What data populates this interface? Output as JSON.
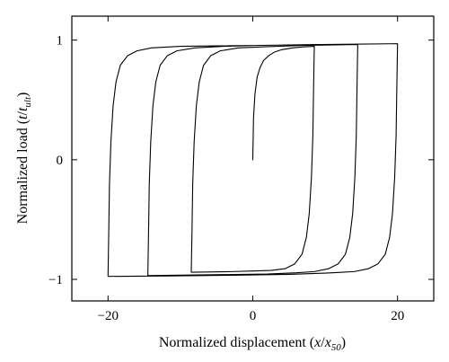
{
  "chart_data": {
    "type": "line",
    "title": "",
    "xlabel": "Normalized displacement (x/x50)",
    "xlabel_parts": {
      "prefix": "Normalized displacement (",
      "var": "x",
      "slash": "/",
      "var2": "x",
      "sub": "50",
      "suffix": ")"
    },
    "ylabel": "Normalized load (t/tult)",
    "ylabel_parts": {
      "prefix": "Normalized load (",
      "var": "t",
      "slash": "/",
      "var2": "t",
      "sub": "ult",
      "suffix": ")"
    },
    "xlim": [
      -25,
      25
    ],
    "ylim": [
      -1.18,
      1.2
    ],
    "xticks": [
      -20,
      0,
      20
    ],
    "xtick_labels": [
      "−20",
      "0",
      "20"
    ],
    "yticks": [
      -1,
      0,
      1
    ],
    "ytick_labels": [
      "−1",
      "0",
      "1"
    ],
    "grid": false,
    "legend": "none",
    "series": [
      {
        "x": [
          0,
          0.1,
          0.3,
          0.6,
          1.0,
          1.5,
          2.2,
          3.0,
          4.0,
          5.5,
          7.0,
          8.5,
          8.5,
          8.4,
          8.3,
          8.1,
          7.8,
          7.4,
          6.8,
          5.8,
          4.5,
          2.5,
          0,
          -3,
          -8.5,
          -8.5,
          -8.4,
          -8.3,
          -8.1,
          -7.8,
          -7.4,
          -6.8,
          -5.8,
          -4.5,
          -2,
          2,
          7,
          14.5,
          14.5,
          14.4,
          14.3,
          14.1,
          13.8,
          13.4,
          12.8,
          11.8,
          10.5,
          8.5,
          6,
          2,
          -4,
          -10,
          -14.5,
          -14.5,
          -14.4,
          -14.3,
          -14.1,
          -13.8,
          -13.4,
          -12.8,
          -11.8,
          -10.5,
          -8,
          -4,
          1,
          8,
          14,
          20,
          20,
          19.9,
          19.8,
          19.6,
          19.3,
          18.9,
          18.3,
          17.3,
          16.0,
          14,
          10,
          5,
          -2,
          -10,
          -20,
          -20,
          -19.9,
          -19.8,
          -19.6,
          -19.3,
          -18.9,
          -18.3,
          -17.3,
          -16.0,
          -14,
          -10,
          -5,
          0
        ],
        "y": [
          0,
          0.35,
          0.55,
          0.69,
          0.77,
          0.83,
          0.87,
          0.9,
          0.92,
          0.935,
          0.943,
          0.948,
          0.948,
          0.6,
          0.2,
          -0.15,
          -0.45,
          -0.65,
          -0.79,
          -0.87,
          -0.91,
          -0.925,
          -0.93,
          -0.935,
          -0.94,
          -0.94,
          -0.6,
          -0.2,
          0.15,
          0.45,
          0.65,
          0.79,
          0.87,
          0.91,
          0.935,
          0.945,
          0.955,
          0.963,
          0.963,
          0.6,
          0.2,
          -0.15,
          -0.45,
          -0.65,
          -0.79,
          -0.87,
          -0.91,
          -0.935,
          -0.945,
          -0.955,
          -0.96,
          -0.965,
          -0.968,
          -0.968,
          -0.6,
          -0.2,
          0.15,
          0.45,
          0.65,
          0.79,
          0.87,
          0.91,
          0.935,
          0.948,
          0.956,
          0.962,
          0.966,
          0.97,
          0.97,
          0.6,
          0.2,
          -0.15,
          -0.45,
          -0.65,
          -0.79,
          -0.87,
          -0.91,
          -0.935,
          -0.948,
          -0.958,
          -0.965,
          -0.97,
          -0.975,
          -0.975,
          -0.6,
          -0.2,
          0.15,
          0.45,
          0.65,
          0.79,
          0.87,
          0.91,
          0.935,
          0.948,
          0.952,
          0.955
        ]
      }
    ]
  }
}
